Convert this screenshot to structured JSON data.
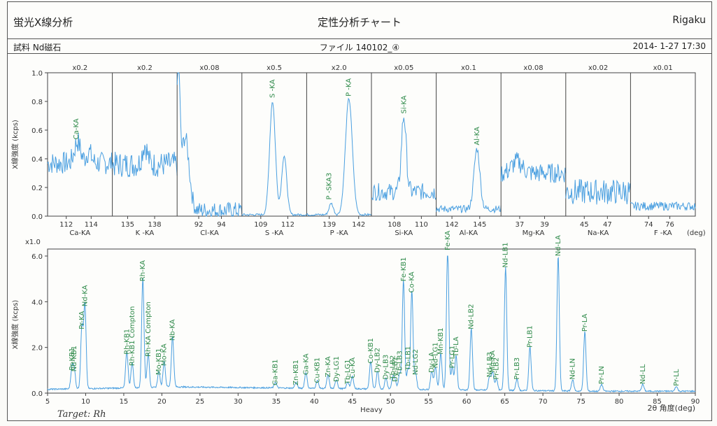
{
  "header": {
    "analysis_label": "蛍光X線分析",
    "title": "定性分析チャート",
    "brand": "Rigaku",
    "sample": "試料 Nd磁石",
    "file": "ファイル 140102_④",
    "datetime": "2014- 1-27 17:30",
    "handwritten_note": "Target: Rh"
  },
  "colors": {
    "trace": "#4a9fe0",
    "peak_label": "#2f8a4a",
    "frame": "#444444",
    "axis_text": "#333333"
  },
  "chart_data": [
    {
      "type": "line",
      "ylabel": "X線強度 (kcps)",
      "ylim": [
        0,
        1.0
      ],
      "yticks": [
        0.0,
        0.2,
        0.4,
        0.6,
        0.8,
        1.0
      ],
      "xunit": "(deg)",
      "panels": [
        {
          "scale": "x0.2",
          "element": "Ca-KA",
          "xlim": [
            110.5,
            115.7
          ],
          "ticks": [
            112,
            114
          ],
          "peaks": [
            {
              "label": "Ca-KA",
              "x": 112.8,
              "y": 0.52
            }
          ],
          "base": 0.37,
          "noise": 0.08,
          "trace_peaks": [
            {
              "x": 112.9,
              "y": 0.52,
              "w": 0.35
            },
            {
              "x": 113.8,
              "y": 0.45,
              "w": 0.3
            }
          ]
        },
        {
          "scale": "x0.2",
          "element": "K -KA",
          "xlim": [
            133.3,
            140.5
          ],
          "ticks": [
            135,
            138
          ],
          "peaks": [],
          "base": 0.36,
          "noise": 0.09,
          "trace_peaks": [
            {
              "x": 136.9,
              "y": 0.5,
              "w": 0.4
            }
          ]
        },
        {
          "scale": "x0.08",
          "element": "Cl-KA",
          "xlim": [
            90.1,
            95.8
          ],
          "ticks": [
            92,
            94
          ],
          "peaks": [],
          "base": 0.04,
          "noise": 0.06,
          "trace_peaks": [
            {
              "x": 90.2,
              "y": 1.0,
              "w": 0.2
            },
            {
              "x": 90.8,
              "y": 0.55,
              "w": 0.5
            }
          ]
        },
        {
          "scale": "x0.5",
          "element": "S -KA",
          "xlim": [
            106.9,
            114.1
          ],
          "ticks": [
            109,
            112
          ],
          "peaks": [
            {
              "label": "S -KA",
              "x": 110.3,
              "y": 0.81
            }
          ],
          "base": 0.01,
          "noise": 0.008,
          "trace_peaks": [
            {
              "x": 110.3,
              "y": 0.8,
              "w": 0.45
            },
            {
              "x": 111.6,
              "y": 0.42,
              "w": 0.4
            }
          ]
        },
        {
          "scale": "x2.0",
          "element": "P -KA",
          "xlim": [
            136.7,
            143.3
          ],
          "ticks": [
            139,
            142
          ],
          "peaks": [
            {
              "label": "P -SKA3",
              "x": 139.0,
              "y": 0.1
            },
            {
              "label": "P -KA",
              "x": 141.0,
              "y": 0.82
            }
          ],
          "base": 0.01,
          "noise": 0.008,
          "trace_peaks": [
            {
              "x": 141.0,
              "y": 0.82,
              "w": 0.5
            },
            {
              "x": 139.2,
              "y": 0.09,
              "w": 0.3
            }
          ]
        },
        {
          "scale": "x0.05",
          "element": "Si-KA",
          "xlim": [
            106.3,
            111.1
          ],
          "ticks": [
            108,
            110
          ],
          "peaks": [
            {
              "label": "Si-KA",
              "x": 108.7,
              "y": 0.7
            }
          ],
          "base": 0.17,
          "noise": 0.06,
          "trace_peaks": [
            {
              "x": 108.7,
              "y": 0.7,
              "w": 0.25
            }
          ]
        },
        {
          "scale": "x0.1",
          "element": "Al-KA",
          "xlim": [
            140.3,
            147.3
          ],
          "ticks": [
            142,
            145
          ],
          "peaks": [
            {
              "label": "Al-KA",
              "x": 144.7,
              "y": 0.48
            }
          ],
          "base": 0.05,
          "noise": 0.025,
          "trace_peaks": [
            {
              "x": 144.7,
              "y": 0.47,
              "w": 0.45
            }
          ]
        },
        {
          "scale": "x0.08",
          "element": "Mg-KA",
          "xlim": [
            35.5,
            40.7
          ],
          "ticks": [
            37,
            39
          ],
          "peaks": [],
          "base": 0.3,
          "noise": 0.07,
          "trace_peaks": [
            {
              "x": 36.8,
              "y": 0.38,
              "w": 0.6
            }
          ]
        },
        {
          "scale": "x0.02",
          "element": "Na-KA",
          "xlim": [
            43.4,
            49.0
          ],
          "ticks": [
            45,
            47
          ],
          "peaks": [],
          "base": 0.17,
          "noise": 0.09,
          "trace_peaks": []
        },
        {
          "scale": "x0.01",
          "element": "F -KA",
          "xlim": [
            72.3,
            78.4
          ],
          "ticks": [
            74,
            76
          ],
          "peaks": [],
          "base": 0.07,
          "noise": 0.03,
          "trace_peaks": []
        }
      ]
    },
    {
      "type": "line",
      "scale": "x1.0",
      "xlabel": "Heavy",
      "xlabel_right": "2θ 角度(deg)",
      "ylabel": "X線強度 (kcps)",
      "xlim": [
        5,
        90
      ],
      "ylim": [
        0,
        6.0
      ],
      "xticks": [
        5,
        10,
        15,
        20,
        25,
        30,
        35,
        40,
        45,
        50,
        55,
        60,
        65,
        70,
        75,
        80,
        85,
        90
      ],
      "yticks": [
        0.0,
        2.0,
        4.0,
        6.0
      ],
      "background": 0.28,
      "peaks": [
        {
          "label": "Pr-KB1",
          "x": 8.2,
          "y": 0.9
        },
        {
          "label": "Nd-KB1",
          "x": 8.5,
          "y": 0.85
        },
        {
          "label": "Pr-KA",
          "x": 9.5,
          "y": 2.7
        },
        {
          "label": "Nd-KA",
          "x": 9.9,
          "y": 3.7
        },
        {
          "label": "Rh-KB1",
          "x": 15.4,
          "y": 1.6
        },
        {
          "label": "Rh-KB1 Compton",
          "x": 16.1,
          "y": 1.1
        },
        {
          "label": "Rh-KA",
          "x": 17.5,
          "y": 4.8
        },
        {
          "label": "Rh-KA Compton",
          "x": 18.2,
          "y": 1.5
        },
        {
          "label": "Mo-KB1",
          "x": 19.6,
          "y": 0.7
        },
        {
          "label": "Mo-KA",
          "x": 20.3,
          "y": 1.1
        },
        {
          "label": "Nb-KA",
          "x": 21.4,
          "y": 2.2
        },
        {
          "label": "Ga-KB1",
          "x": 34.9,
          "y": 0.25
        },
        {
          "label": "Zn-KB1",
          "x": 37.6,
          "y": 0.25
        },
        {
          "label": "Ga-KA",
          "x": 38.9,
          "y": 0.7
        },
        {
          "label": "Cu-KB1",
          "x": 40.4,
          "y": 0.35
        },
        {
          "label": "Zn-KA",
          "x": 41.8,
          "y": 0.6
        },
        {
          "label": "Dy-LG1",
          "x": 42.9,
          "y": 0.4
        },
        {
          "label": "Tb-LG1",
          "x": 44.4,
          "y": 0.3
        },
        {
          "label": "Cu-KA",
          "x": 45.0,
          "y": 0.55
        },
        {
          "label": "Co-KB1",
          "x": 47.4,
          "y": 1.2
        },
        {
          "label": "Dy-LB2",
          "x": 48.3,
          "y": 0.8
        },
        {
          "label": "Dy-LB3",
          "x": 49.4,
          "y": 0.5
        },
        {
          "label": "Tb-LB2",
          "x": 50.3,
          "y": 0.5
        },
        {
          "label": "Dy-LB1",
          "x": 50.6,
          "y": 0.4
        },
        {
          "label": "Tb-LB3",
          "x": 51.2,
          "y": 0.7
        },
        {
          "label": "Fe-KB1",
          "x": 51.7,
          "y": 4.8
        },
        {
          "label": "Tb-LB1",
          "x": 52.3,
          "y": 0.9
        },
        {
          "label": "Co-KA",
          "x": 52.8,
          "y": 4.3
        },
        {
          "label": "Nd-LG2",
          "x": 53.3,
          "y": 0.7
        },
        {
          "label": "Dy-LA",
          "x": 55.4,
          "y": 0.8
        },
        {
          "label": "Nd-LG1",
          "x": 55.9,
          "y": 1.0
        },
        {
          "label": "Mn-KB1",
          "x": 56.6,
          "y": 1.6
        },
        {
          "label": "Fe-KA",
          "x": 57.5,
          "y": 6.2
        },
        {
          "label": "Pr-LG1",
          "x": 58.1,
          "y": 1.0
        },
        {
          "label": "Tb-LA",
          "x": 58.6,
          "y": 1.5
        },
        {
          "label": "Nd-LB2",
          "x": 60.6,
          "y": 2.7
        },
        {
          "label": "Nd-LB3",
          "x": 63.0,
          "y": 0.6
        },
        {
          "label": "Mn-KA",
          "x": 63.4,
          "y": 0.8
        },
        {
          "label": "Pr-LB2",
          "x": 63.9,
          "y": 0.5
        },
        {
          "label": "Nd-LB1",
          "x": 65.1,
          "y": 5.4
        },
        {
          "label": "Pr-LB3",
          "x": 66.6,
          "y": 0.5
        },
        {
          "label": "Pr-LB1",
          "x": 68.3,
          "y": 1.9
        },
        {
          "label": "Nd-LA",
          "x": 72.0,
          "y": 5.9
        },
        {
          "label": "Nd-LN",
          "x": 73.9,
          "y": 0.5
        },
        {
          "label": "Pr-LA",
          "x": 75.5,
          "y": 2.6
        },
        {
          "label": "Pr-LN",
          "x": 77.7,
          "y": 0.3
        },
        {
          "label": "Nd-LL",
          "x": 83.1,
          "y": 0.3
        },
        {
          "label": "Pr-LL",
          "x": 87.5,
          "y": 0.22
        }
      ]
    }
  ]
}
